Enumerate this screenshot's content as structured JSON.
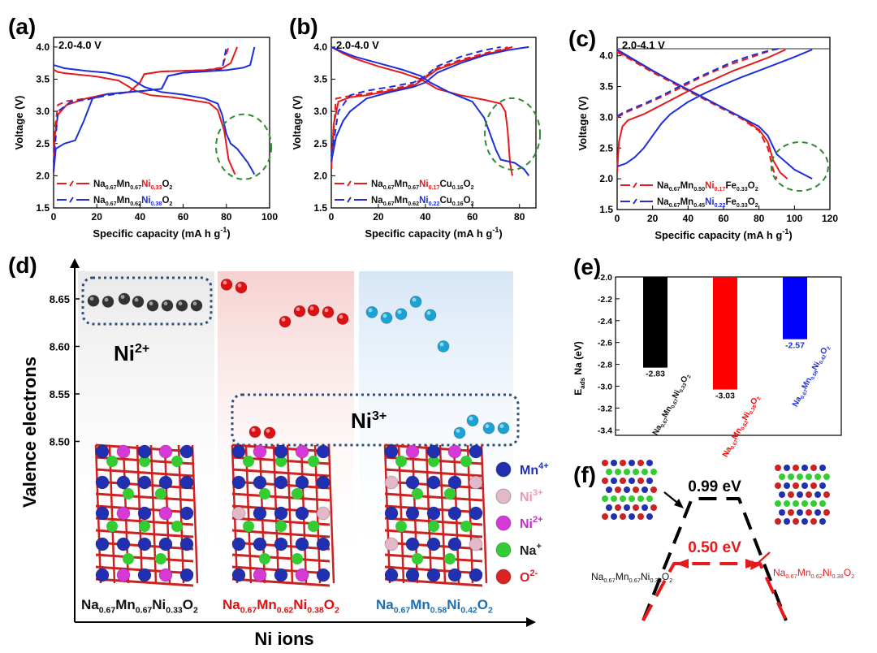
{
  "chart_data": [
    {
      "panel": "(a)",
      "type": "line",
      "annotation": "2.0-4.0 V",
      "xlabel": "Specific capacity (mA h g",
      "xlabel_sup": "-1",
      "xlabel_end": ")",
      "ylabel": "Voltage (V)",
      "xlim": [
        0,
        100
      ],
      "ylim": [
        1.5,
        4.15
      ],
      "xticks": [
        "0",
        "20",
        "40",
        "60",
        "80",
        "100"
      ],
      "yticks": [
        "1.5",
        "2.0",
        "2.5",
        "3.0",
        "3.5",
        "4.0"
      ],
      "colors": {
        "s1": "#e41a1c",
        "s2": "#1f2fd8"
      },
      "legend": [
        {
          "series": "s1",
          "parts": [
            "Na",
            "0.67",
            "Mn",
            "0.67",
            "Ni",
            "0.33",
            "O",
            "2"
          ],
          "highlight_index": 4
        },
        {
          "series": "s2",
          "parts": [
            "Na",
            "0.67",
            "Mn",
            "0.62",
            "Ni",
            "0.38",
            "O",
            "2"
          ],
          "highlight_index": 4
        }
      ],
      "series": [
        {
          "name": "s1-discharge",
          "color": "#e41a1c",
          "dash": false,
          "x": [
            0,
            2,
            6,
            12,
            20,
            30,
            38,
            45,
            55,
            65,
            72,
            76,
            79,
            81,
            84
          ],
          "y": [
            3.65,
            3.61,
            3.59,
            3.57,
            3.54,
            3.48,
            3.32,
            3.25,
            3.22,
            3.17,
            3.13,
            3.02,
            2.7,
            2.25,
            2.02
          ]
        },
        {
          "name": "s1-charge",
          "color": "#e41a1c",
          "dash": false,
          "x": [
            0,
            0.5,
            2,
            6,
            15,
            25,
            35,
            40,
            42,
            50,
            60,
            70,
            78,
            82,
            85
          ],
          "y": [
            2.03,
            2.6,
            2.95,
            3.1,
            3.2,
            3.27,
            3.3,
            3.45,
            3.58,
            3.62,
            3.63,
            3.64,
            3.67,
            3.75,
            4.0
          ]
        },
        {
          "name": "s1-charge-2",
          "color": "#e41a1c",
          "dash": true,
          "x": [
            0,
            0.5,
            2,
            6,
            15,
            25,
            35,
            40,
            42,
            50,
            60,
            70,
            78,
            81
          ],
          "y": [
            2.1,
            2.7,
            3.1,
            3.16,
            3.2,
            3.27,
            3.3,
            3.45,
            3.58,
            3.62,
            3.63,
            3.64,
            3.68,
            4.0
          ]
        },
        {
          "name": "s2-discharge",
          "color": "#1f2fd8",
          "dash": false,
          "x": [
            0,
            5,
            15,
            25,
            35,
            42,
            50,
            60,
            70,
            76,
            78,
            80,
            82,
            85,
            90,
            93
          ],
          "y": [
            3.72,
            3.67,
            3.63,
            3.6,
            3.52,
            3.38,
            3.3,
            3.26,
            3.2,
            3.12,
            2.95,
            2.65,
            2.5,
            2.42,
            2.2,
            2.02
          ]
        },
        {
          "name": "s2-charge",
          "color": "#1f2fd8",
          "dash": false,
          "x": [
            0,
            1,
            5,
            10,
            14,
            18,
            25,
            35,
            42,
            50,
            53,
            60,
            70,
            80,
            88,
            91,
            93
          ],
          "y": [
            2.05,
            2.42,
            2.5,
            2.55,
            2.85,
            3.2,
            3.27,
            3.3,
            3.32,
            3.35,
            3.55,
            3.6,
            3.62,
            3.64,
            3.68,
            3.72,
            4.0
          ]
        },
        {
          "name": "s2-charge-2",
          "color": "#1f2fd8",
          "dash": true,
          "x": [
            0,
            2,
            8,
            15,
            25,
            35,
            42,
            50,
            53,
            60,
            70,
            78,
            80
          ],
          "y": [
            2.2,
            3.0,
            3.15,
            3.18,
            3.25,
            3.3,
            3.32,
            3.35,
            3.55,
            3.6,
            3.62,
            3.65,
            4.0
          ]
        }
      ]
    },
    {
      "panel": "(b)",
      "type": "line",
      "annotation": "2.0-4.0 V",
      "xlabel": "Specific capacity (mA h g",
      "xlabel_sup": "-1",
      "xlabel_end": ")",
      "ylabel": "Voltage (V)",
      "xlim": [
        0,
        87
      ],
      "ylim": [
        1.5,
        4.15
      ],
      "xticks": [
        "0",
        "20",
        "40",
        "60",
        "80"
      ],
      "yticks": [
        "1.5",
        "2.0",
        "2.5",
        "3.0",
        "3.5",
        "4.0"
      ],
      "colors": {
        "s1": "#e41a1c",
        "s2": "#1f2fd8"
      },
      "legend": [
        {
          "series": "s1",
          "parts": [
            "Na",
            "0.67",
            "Mn",
            "0.67",
            "Ni",
            "0.17",
            "Cu",
            "0.16",
            "O",
            "2"
          ],
          "highlight_index": 4
        },
        {
          "series": "s2",
          "parts": [
            "Na",
            "0.67",
            "Mn",
            "0.62",
            "Ni",
            "0.22",
            "Cu",
            "0.16",
            "O",
            "2"
          ],
          "highlight_index": 4
        }
      ],
      "series": [
        {
          "name": "s1-discharge",
          "color": "#e41a1c",
          "dash": false,
          "x": [
            0,
            5,
            10,
            20,
            30,
            38,
            45,
            55,
            65,
            72,
            74,
            75,
            76,
            77
          ],
          "y": [
            4.0,
            3.9,
            3.82,
            3.7,
            3.6,
            3.5,
            3.35,
            3.25,
            3.18,
            3.12,
            3.0,
            2.7,
            2.2,
            2.0
          ]
        },
        {
          "name": "s1-charge",
          "color": "#e41a1c",
          "dash": false,
          "x": [
            0,
            1,
            3,
            8,
            15,
            25,
            35,
            40,
            45,
            55,
            65,
            72,
            75,
            77
          ],
          "y": [
            2.1,
            2.8,
            3.15,
            3.22,
            3.25,
            3.32,
            3.4,
            3.52,
            3.65,
            3.78,
            3.88,
            3.94,
            3.98,
            4.0
          ]
        },
        {
          "name": "s1-charge-2",
          "color": "#e41a1c",
          "dash": true,
          "x": [
            0,
            2,
            8,
            15,
            25,
            35,
            40,
            45,
            55,
            65,
            72,
            75
          ],
          "y": [
            2.2,
            3.2,
            3.24,
            3.27,
            3.34,
            3.42,
            3.54,
            3.67,
            3.8,
            3.9,
            3.96,
            4.0
          ]
        },
        {
          "name": "s2-discharge",
          "color": "#1f2fd8",
          "dash": false,
          "x": [
            0,
            5,
            10,
            20,
            30,
            38,
            42,
            50,
            60,
            65,
            70,
            72,
            78,
            82,
            84
          ],
          "y": [
            4.0,
            3.92,
            3.85,
            3.75,
            3.65,
            3.55,
            3.45,
            3.3,
            3.15,
            2.9,
            2.4,
            2.25,
            2.2,
            2.1,
            2.0
          ]
        },
        {
          "name": "s2-charge",
          "color": "#1f2fd8",
          "dash": false,
          "x": [
            0,
            2,
            5,
            8,
            15,
            25,
            35,
            40,
            45,
            55,
            65,
            75,
            80,
            84
          ],
          "y": [
            2.22,
            2.6,
            2.85,
            3.0,
            3.2,
            3.3,
            3.38,
            3.45,
            3.6,
            3.75,
            3.87,
            3.95,
            3.98,
            4.0
          ]
        },
        {
          "name": "s2-charge-2",
          "color": "#1f2fd8",
          "dash": true,
          "x": [
            0,
            3,
            8,
            15,
            25,
            35,
            40,
            45,
            55,
            65,
            72
          ],
          "y": [
            2.3,
            3.0,
            3.25,
            3.32,
            3.38,
            3.45,
            3.55,
            3.7,
            3.85,
            3.95,
            4.0
          ]
        }
      ]
    },
    {
      "panel": "(c)",
      "type": "line",
      "annotation": "2.0-4.1 V",
      "xlabel": "Specific capacity (mA h g",
      "xlabel_sup": "-1",
      "xlabel_end": ")",
      "ylabel": "Voltage (V)",
      "xlim": [
        0,
        120
      ],
      "ylim": [
        1.5,
        4.3
      ],
      "xticks": [
        "0",
        "20",
        "40",
        "60",
        "80",
        "100",
        "120"
      ],
      "yticks": [
        "1.5",
        "2.0",
        "2.5",
        "3.0",
        "3.5",
        "4.0"
      ],
      "colors": {
        "s1": "#e41a1c",
        "s2": "#1f2fd8"
      },
      "legend": [
        {
          "series": "s1",
          "parts": [
            "Na",
            "0.67",
            "Mn",
            "0.50",
            "Ni",
            "0.17",
            "Fe",
            "0.33",
            "O",
            "2"
          ],
          "highlight_index": 4
        },
        {
          "series": "s2",
          "parts": [
            "Na",
            "0.67",
            "Mn",
            "0.45",
            "Ni",
            "0.22",
            "Fe",
            "0.33",
            "O",
            "2"
          ],
          "highlight_index": 4
        }
      ],
      "series": [
        {
          "name": "s1-discharge",
          "color": "#e41a1c",
          "dash": false,
          "x": [
            0,
            10,
            20,
            30,
            40,
            50,
            60,
            70,
            80,
            85,
            88,
            92,
            96
          ],
          "y": [
            4.08,
            3.92,
            3.75,
            3.6,
            3.45,
            3.3,
            3.15,
            3.0,
            2.8,
            2.6,
            2.3,
            2.1,
            2.0
          ]
        },
        {
          "name": "s1-discharge-2",
          "color": "#e41a1c",
          "dash": true,
          "x": [
            0,
            10,
            20,
            30,
            40,
            50,
            60,
            70,
            80,
            85,
            88,
            90
          ],
          "y": [
            4.06,
            3.9,
            3.73,
            3.58,
            3.43,
            3.28,
            3.13,
            2.98,
            2.78,
            2.5,
            2.15,
            2.0
          ]
        },
        {
          "name": "s1-charge",
          "color": "#e41a1c",
          "dash": false,
          "x": [
            0,
            1,
            3,
            6,
            15,
            25,
            35,
            45,
            55,
            65,
            75,
            85,
            95
          ],
          "y": [
            2.1,
            2.6,
            2.85,
            2.95,
            3.05,
            3.2,
            3.35,
            3.5,
            3.62,
            3.75,
            3.86,
            3.97,
            4.1
          ]
        },
        {
          "name": "s1-charge-2",
          "color": "#e41a1c",
          "dash": true,
          "x": [
            0,
            5,
            15,
            25,
            35,
            45,
            55,
            65,
            75,
            85,
            88
          ],
          "y": [
            3.0,
            3.08,
            3.2,
            3.33,
            3.47,
            3.62,
            3.75,
            3.87,
            3.97,
            4.07,
            4.1
          ]
        },
        {
          "name": "s2-discharge",
          "color": "#1f2fd8",
          "dash": false,
          "x": [
            0,
            10,
            20,
            30,
            40,
            50,
            60,
            70,
            80,
            85,
            90,
            100,
            110
          ],
          "y": [
            4.1,
            3.93,
            3.76,
            3.6,
            3.45,
            3.3,
            3.15,
            3.0,
            2.85,
            2.7,
            2.4,
            2.15,
            2.0
          ]
        },
        {
          "name": "s2-charge",
          "color": "#1f2fd8",
          "dash": false,
          "x": [
            0,
            5,
            10,
            15,
            20,
            25,
            30,
            40,
            50,
            60,
            70,
            80,
            90,
            100,
            110
          ],
          "y": [
            2.2,
            2.25,
            2.35,
            2.5,
            2.7,
            2.9,
            3.05,
            3.25,
            3.4,
            3.53,
            3.65,
            3.76,
            3.87,
            3.98,
            4.1
          ]
        },
        {
          "name": "s2-charge-2",
          "color": "#1f2fd8",
          "dash": true,
          "x": [
            0,
            5,
            15,
            25,
            35,
            45,
            55,
            65,
            75,
            85,
            92
          ],
          "y": [
            3.02,
            3.1,
            3.22,
            3.35,
            3.5,
            3.64,
            3.77,
            3.9,
            4.0,
            4.08,
            4.12
          ]
        }
      ]
    },
    {
      "panel": "(d)",
      "type": "scatter",
      "ylabel": "Valence electrons",
      "xlabel": "Ni ions",
      "ylim": [
        8.42,
        8.68
      ],
      "yticks": [
        "8.50",
        "8.55",
        "8.60",
        "8.65"
      ],
      "label_ni2": "Ni",
      "label_ni2_sup": "2+",
      "label_ni3": "Ni",
      "label_ni3_sup": "3+",
      "groups": [
        {
          "color": "#333333",
          "points": [
            8.648,
            8.647,
            8.65,
            8.647,
            8.643,
            8.643,
            8.643,
            8.643
          ],
          "formula": [
            "Na",
            "0.67",
            "Mn",
            "0.67",
            "Ni",
            "0.33",
            "O",
            "2"
          ],
          "formula_color": "#111111"
        },
        {
          "color": "#dd1111",
          "points": [
            8.665,
            8.662,
            8.626,
            8.637,
            8.638,
            8.636,
            8.629,
            8.51,
            8.509
          ],
          "formula": [
            "Na",
            "0.67",
            "Mn",
            "0.62",
            "Ni",
            "0.38",
            "O",
            "2"
          ],
          "formula_color": "#dd1111"
        },
        {
          "color": "#1aa3d4",
          "points": [
            8.636,
            8.63,
            8.634,
            8.647,
            8.633,
            8.6,
            8.509,
            8.522,
            8.514,
            8.514
          ],
          "formula": [
            "Na",
            "0.67",
            "Mn",
            "0.58",
            "Ni",
            "0.42",
            "O",
            "2"
          ],
          "formula_color": "#1f6fb0"
        }
      ],
      "legend": [
        {
          "label": "Mn",
          "sup": "4+",
          "color": "#2030b0"
        },
        {
          "label": "Ni",
          "sup": "3+",
          "color": "#e3b8c8"
        },
        {
          "label": "Ni",
          "sup": "2+",
          "color": "#d63ad6"
        },
        {
          "label": "Na",
          "sup": "+",
          "color": "#33cc33"
        },
        {
          "label": "O",
          "sup": "2-",
          "color": "#dd2222"
        }
      ]
    },
    {
      "panel": "(e)",
      "type": "bar",
      "ylabel": "E",
      "ylabel_sub": "ads",
      "ylabel_end": "Na (eV)",
      "ylim": [
        -3.45,
        -2.0
      ],
      "yticks": [
        "-2.0",
        "-2.2",
        "-2.4",
        "-2.6",
        "-2.8",
        "-3.0",
        "-3.2",
        "-3.4"
      ],
      "values": [
        -2.83,
        -3.03,
        -2.57
      ],
      "value_labels": [
        "-2.83",
        "-3.03",
        "-2.57"
      ],
      "colors": [
        "#000000",
        "#ff0000",
        "#0000ff"
      ],
      "categories": [
        {
          "parts": [
            "Na",
            "0.67",
            "Mn",
            "0.67",
            "Ni",
            "0.33",
            "O",
            "2"
          ],
          "color": "#111111"
        },
        {
          "parts": [
            "Na",
            "0.67",
            "Mn",
            "0.62",
            "Ni",
            "0.38",
            "O",
            "2"
          ],
          "color": "#ff0000"
        },
        {
          "parts": [
            "Na",
            "0.67",
            "Mn",
            "0.58",
            "Ni",
            "0.42",
            "O",
            "2"
          ],
          "color": "#1f2fd8"
        }
      ]
    },
    {
      "panel": "(f)",
      "type": "line",
      "barrier_black": "0.99 eV",
      "barrier_red": "0.50 eV",
      "series": [
        {
          "name": "Na0.67Mn0.67Ni0.33O2",
          "color": "#000000",
          "barrier": 0.99
        },
        {
          "name": "Na0.67Mn0.62Ni0.38O2",
          "color": "#e41a1c",
          "barrier": 0.5
        }
      ],
      "label_left": [
        "Na",
        "0.67",
        "Mn",
        "0.67",
        "Ni",
        "0.33",
        "O",
        "2"
      ],
      "label_right": [
        "Na",
        "0.67",
        "Mn",
        "0.62",
        "Ni",
        "0.38",
        "O",
        "2"
      ],
      "label_left_color": "#111111",
      "label_right_color": "#e41a1c"
    }
  ]
}
